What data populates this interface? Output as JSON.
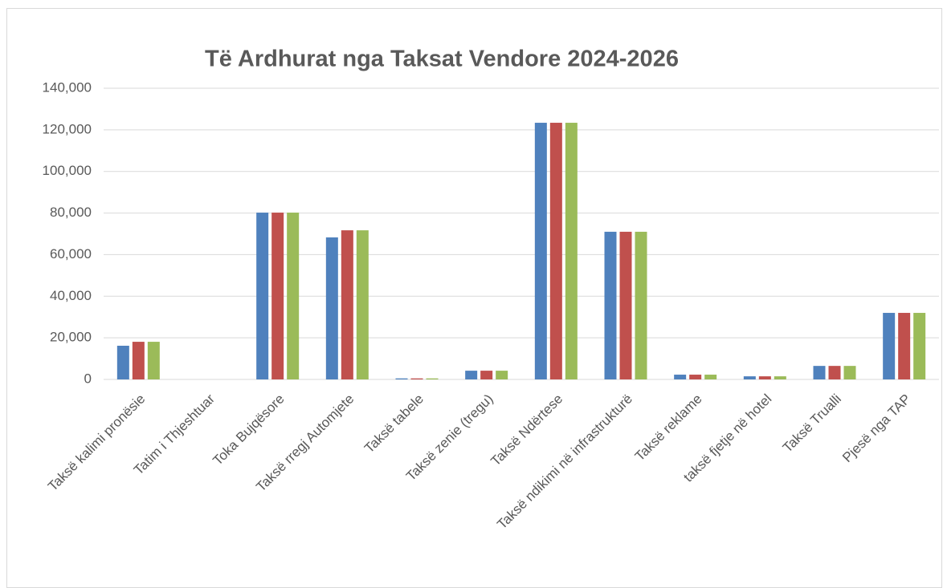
{
  "chart_data": {
    "type": "bar",
    "title": "Të Ardhurat nga Taksat Vendore 2024-2026",
    "categories": [
      "Taksë kalimi pronësie",
      "Tatim i Thjeshtuar",
      "Toka Bujqësore",
      "Taksë rregj Automjete",
      "Taksë tabele",
      "Taksë zenie (tregu)",
      "Taksë Ndërtese",
      "Taksë ndikimi në infrastrukturë",
      "Taksë reklame",
      "taksë fjetje në hotel",
      "Taksë Trualli",
      "Pjesë nga TAP"
    ],
    "series": [
      {
        "color": "#4f81bd",
        "values": [
          16200,
          0,
          80200,
          68300,
          500,
          4200,
          123400,
          71000,
          2300,
          1500,
          6500,
          32000
        ]
      },
      {
        "color": "#c0504d",
        "values": [
          18100,
          0,
          80200,
          71700,
          500,
          4200,
          123400,
          71000,
          2300,
          1500,
          6500,
          32000
        ]
      },
      {
        "color": "#9bbb59",
        "values": [
          18100,
          0,
          80200,
          71700,
          500,
          4200,
          123400,
          71000,
          2300,
          1500,
          6500,
          32000
        ]
      }
    ],
    "ylim": [
      0,
      140000
    ],
    "yticks": [
      0,
      {
        "value": 20000,
        "label": "20,000"
      },
      {
        "value": 40000,
        "label": "40,000"
      },
      {
        "value": 60000,
        "label": "60,000"
      },
      {
        "value": 80000,
        "label": "80,000"
      },
      {
        "value": 100000,
        "label": "100,000"
      },
      {
        "value": 120000,
        "label": "120,000"
      },
      {
        "value": 140000,
        "label": "140,000"
      }
    ],
    "grid": true
  }
}
